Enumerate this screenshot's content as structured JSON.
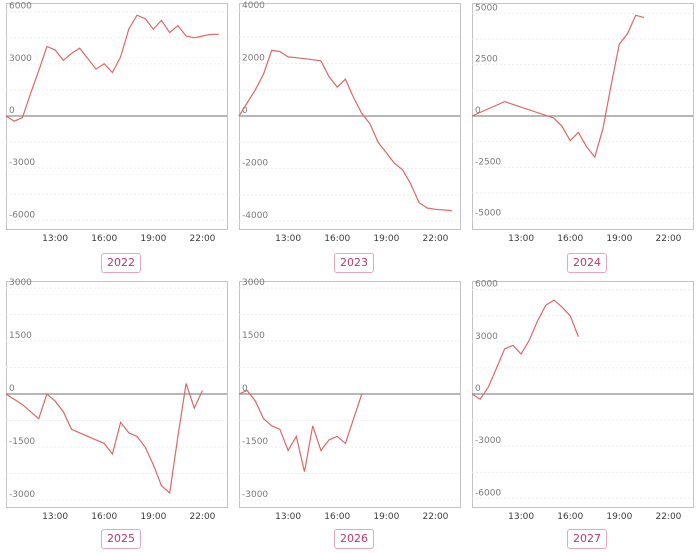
{
  "chart_data": [
    {
      "type": "line",
      "label": "2022",
      "ylim": [
        -6500,
        6500
      ],
      "yticks": [
        6000,
        3000,
        0,
        -3000,
        -6000
      ],
      "ytick_labels": [
        "6000",
        "3000",
        "0",
        "-3000",
        "-6000"
      ],
      "xlim": [
        "10:00",
        "23:30"
      ],
      "xticks": [
        "13:00",
        "16:00",
        "19:00",
        "22:00"
      ],
      "series": [
        {
          "x": [
            "10:00",
            "10:30",
            "11:00",
            "11:30",
            "12:00",
            "12:30",
            "13:00",
            "13:30",
            "14:00",
            "14:30",
            "15:00",
            "15:30",
            "16:00",
            "16:30",
            "17:00",
            "17:30",
            "18:00",
            "18:30",
            "19:00",
            "19:30",
            "20:00",
            "20:30",
            "21:00",
            "21:30",
            "22:00",
            "22:30",
            "23:00"
          ],
          "values": [
            0,
            -300,
            -100,
            1300,
            2600,
            4000,
            3800,
            3200,
            3600,
            3900,
            3300,
            2700,
            3000,
            2500,
            3400,
            5000,
            5800,
            5600,
            5000,
            5500,
            4800,
            5200,
            4600,
            4500,
            4600,
            4700,
            4700
          ],
          "color": "#e06666"
        }
      ]
    },
    {
      "type": "line",
      "label": "2023",
      "ylim": [
        -4300,
        4300
      ],
      "yticks": [
        4000,
        2000,
        0,
        -2000,
        -4000
      ],
      "ytick_labels": [
        "4000",
        "2000",
        "0",
        "-2000",
        "-4000"
      ],
      "xlim": [
        "10:00",
        "23:30"
      ],
      "xticks": [
        "13:00",
        "16:00",
        "19:00",
        "22:00"
      ],
      "series": [
        {
          "x": [
            "10:00",
            "11:00",
            "11:30",
            "12:00",
            "12:30",
            "13:00",
            "13:30",
            "14:00",
            "15:00",
            "15:30",
            "16:00",
            "16:30",
            "17:00",
            "17:30",
            "18:00",
            "18:30",
            "19:00",
            "19:30",
            "20:00",
            "20:30",
            "21:00",
            "21:30",
            "22:00",
            "23:00"
          ],
          "values": [
            0,
            1000,
            1600,
            2500,
            2450,
            2250,
            2220,
            2180,
            2100,
            1500,
            1100,
            1400,
            700,
            100,
            -300,
            -1000,
            -1400,
            -1800,
            -2050,
            -2600,
            -3300,
            -3500,
            -3550,
            -3600
          ],
          "color": "#e06666"
        }
      ]
    },
    {
      "type": "line",
      "label": "2024",
      "ylim": [
        -5500,
        5500
      ],
      "yticks": [
        5000,
        2500,
        0,
        -2500,
        -5000
      ],
      "ytick_labels": [
        "5000",
        "2500",
        "0",
        "-2500",
        "-5000"
      ],
      "xlim": [
        "10:00",
        "23:30"
      ],
      "xticks": [
        "13:00",
        "16:00",
        "19:00",
        "22:00"
      ],
      "series": [
        {
          "x": [
            "10:00",
            "12:00",
            "15:00",
            "15:30",
            "16:00",
            "16:30",
            "17:00",
            "17:30",
            "18:00",
            "18:30",
            "19:00",
            "19:30",
            "20:00",
            "20:30"
          ],
          "values": [
            0,
            700,
            -100,
            -500,
            -1200,
            -800,
            -1500,
            -2000,
            -600,
            1500,
            3500,
            4000,
            4900,
            4800
          ],
          "color": "#e06666"
        }
      ]
    },
    {
      "type": "line",
      "label": "2025",
      "ylim": [
        -3200,
        3200
      ],
      "yticks": [
        3000,
        1500,
        0,
        -1500,
        -3000
      ],
      "ytick_labels": [
        "3000",
        "1500",
        "0",
        "-1500",
        "-3000"
      ],
      "xlim": [
        "10:00",
        "23:30"
      ],
      "xticks": [
        "13:00",
        "16:00",
        "19:00",
        "22:00"
      ],
      "series": [
        {
          "x": [
            "10:00",
            "11:00",
            "12:00",
            "12:30",
            "13:00",
            "13:30",
            "14:00",
            "15:00",
            "16:00",
            "16:30",
            "17:00",
            "17:30",
            "18:00",
            "18:30",
            "19:00",
            "19:30",
            "20:00",
            "20:30",
            "21:00",
            "21:30",
            "22:00"
          ],
          "values": [
            0,
            -300,
            -700,
            0,
            -200,
            -500,
            -1000,
            -1200,
            -1400,
            -1700,
            -800,
            -1100,
            -1200,
            -1500,
            -2000,
            -2600,
            -2800,
            -1200,
            300,
            -400,
            100
          ],
          "color": "#e06666"
        }
      ]
    },
    {
      "type": "line",
      "label": "2026",
      "ylim": [
        -3200,
        3200
      ],
      "yticks": [
        3000,
        1500,
        0,
        -1500,
        -3000
      ],
      "ytick_labels": [
        "3000",
        "1500",
        "0",
        "-1500",
        "-3000"
      ],
      "xlim": [
        "10:00",
        "23:30"
      ],
      "xticks": [
        "13:00",
        "16:00",
        "19:00",
        "22:00"
      ],
      "series": [
        {
          "x": [
            "10:00",
            "10:30",
            "11:00",
            "11:30",
            "12:00",
            "12:30",
            "13:00",
            "13:30",
            "14:00",
            "14:30",
            "15:00",
            "15:30",
            "16:00",
            "16:30",
            "17:00",
            "17:30"
          ],
          "values": [
            0,
            100,
            -200,
            -700,
            -900,
            -1000,
            -1600,
            -1200,
            -2200,
            -900,
            -1600,
            -1300,
            -1200,
            -1400,
            -700,
            0
          ],
          "color": "#e06666"
        }
      ]
    },
    {
      "type": "line",
      "label": "2027",
      "ylim": [
        -6500,
        6500
      ],
      "yticks": [
        6000,
        3000,
        0,
        -3000,
        -6000
      ],
      "ytick_labels": [
        "6000",
        "3000",
        "0",
        "-3000",
        "-6000"
      ],
      "xlim": [
        "10:00",
        "23:30"
      ],
      "xticks": [
        "13:00",
        "16:00",
        "19:00",
        "22:00"
      ],
      "series": [
        {
          "x": [
            "10:00",
            "10:30",
            "11:00",
            "11:30",
            "12:00",
            "12:30",
            "13:00",
            "13:30",
            "14:00",
            "14:30",
            "15:00",
            "15:30",
            "16:00",
            "16:30"
          ],
          "values": [
            0,
            -300,
            400,
            1500,
            2600,
            2800,
            2300,
            3100,
            4200,
            5100,
            5400,
            5000,
            4500,
            3300
          ],
          "color": "#e06666"
        }
      ]
    }
  ]
}
